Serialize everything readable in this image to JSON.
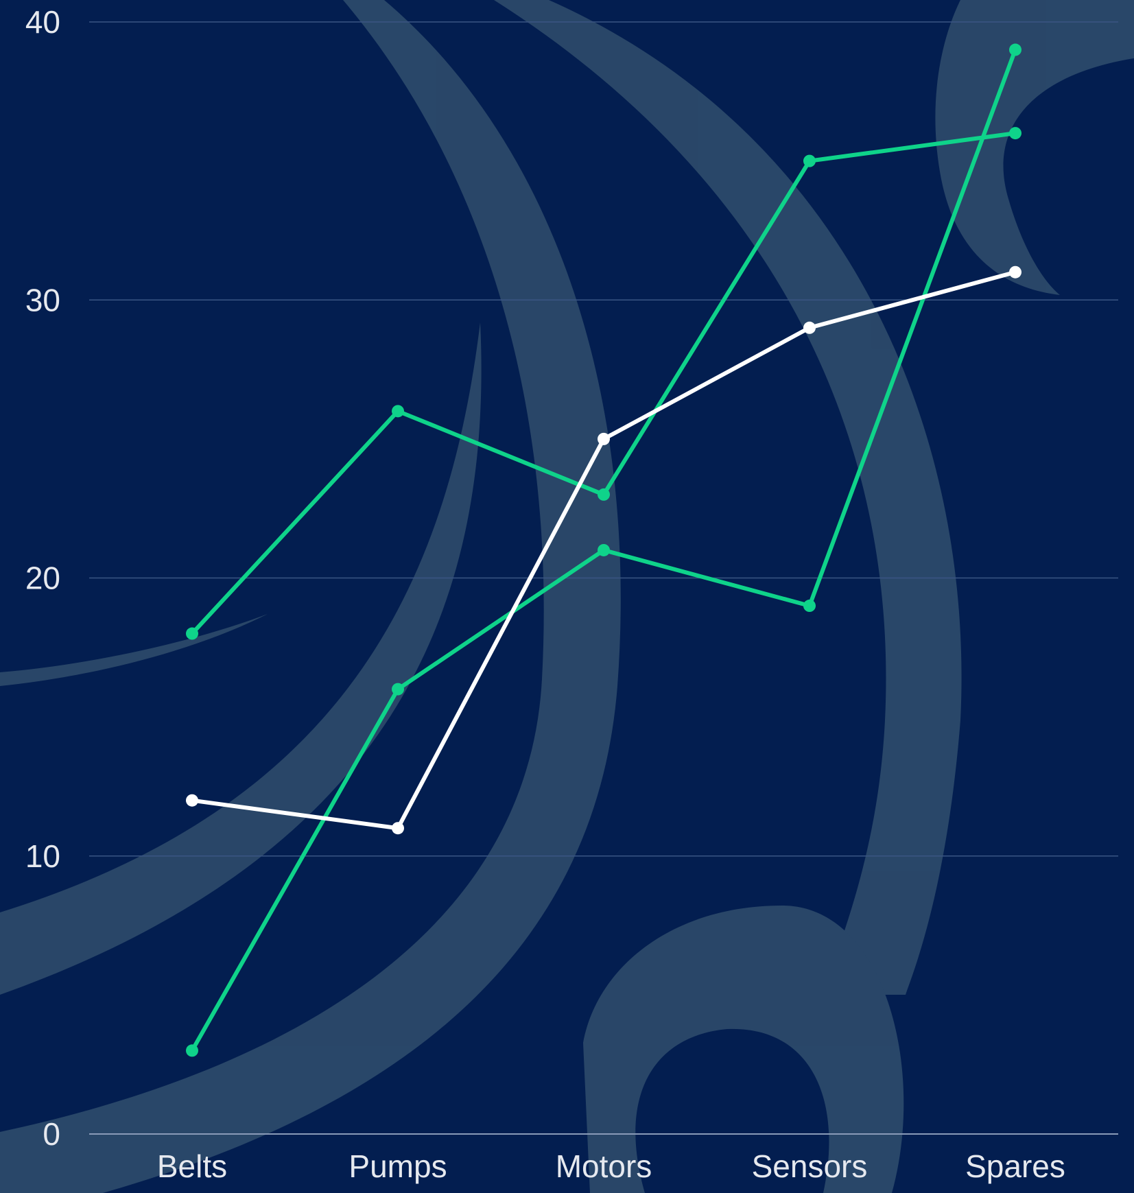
{
  "chart_data": {
    "type": "line",
    "title": "",
    "xlabel": "",
    "ylabel": "",
    "categories": [
      "Belts",
      "Pumps",
      "Motors",
      "Sensors",
      "Spares"
    ],
    "ylim": [
      0,
      40
    ],
    "yticks": [
      0,
      10,
      20,
      30,
      40
    ],
    "grid": true,
    "legend": "none",
    "series": [
      {
        "values": [
          18,
          26,
          23,
          35,
          36
        ],
        "color": "#0fd38a"
      },
      {
        "values": [
          3,
          16,
          21,
          19,
          39
        ],
        "color": "#0fd38a"
      },
      {
        "values": [
          12,
          11,
          25,
          29,
          31
        ],
        "color": "#ffffff"
      }
    ],
    "colors": {
      "background": "#031e50",
      "gridline": "#3a5583",
      "watermark": "#2e4b6b",
      "text": "#e6e9ef"
    },
    "watermark": "wave-logo"
  }
}
